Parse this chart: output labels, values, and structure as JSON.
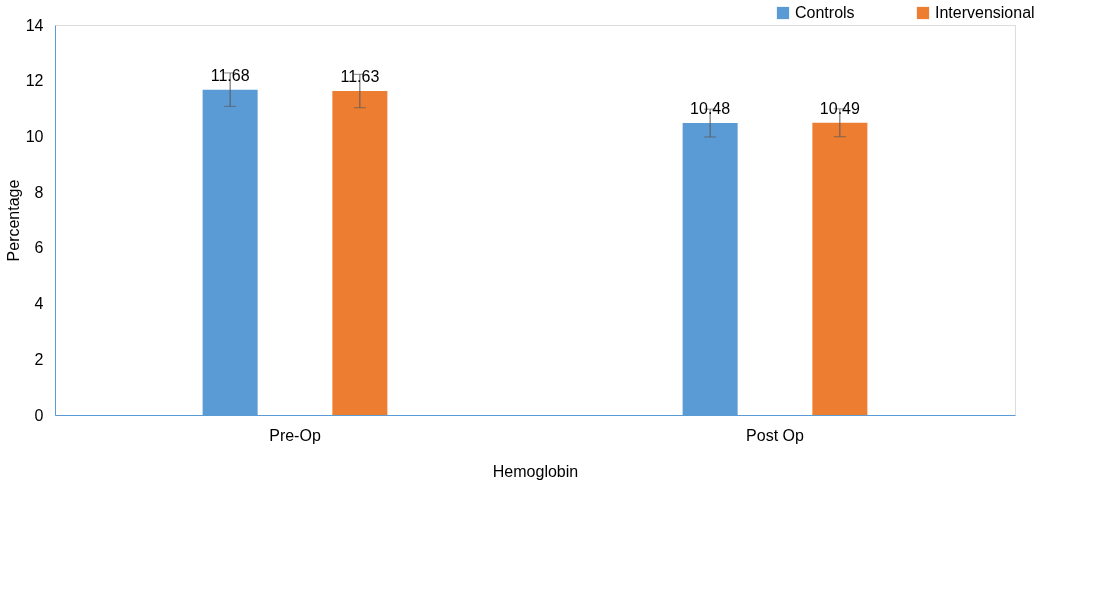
{
  "chart_data": {
    "type": "bar",
    "xlabel": "Hemoglobin",
    "ylabel": "Percentage",
    "categories": [
      "Pre-Op",
      "Post Op"
    ],
    "series": [
      {
        "name": "Controls",
        "color": "#5b9bd5",
        "values": [
          11.68,
          10.48
        ],
        "errors": [
          0.6,
          0.5
        ]
      },
      {
        "name": "Intervensional",
        "color": "#ed7d31",
        "values": [
          11.63,
          10.49
        ],
        "errors": [
          0.6,
          0.5
        ]
      }
    ],
    "ylim": [
      0,
      14
    ],
    "yticks": [
      0,
      2,
      4,
      6,
      8,
      10,
      12,
      14
    ],
    "data_labels": true,
    "grid": false,
    "legend": "top right"
  }
}
